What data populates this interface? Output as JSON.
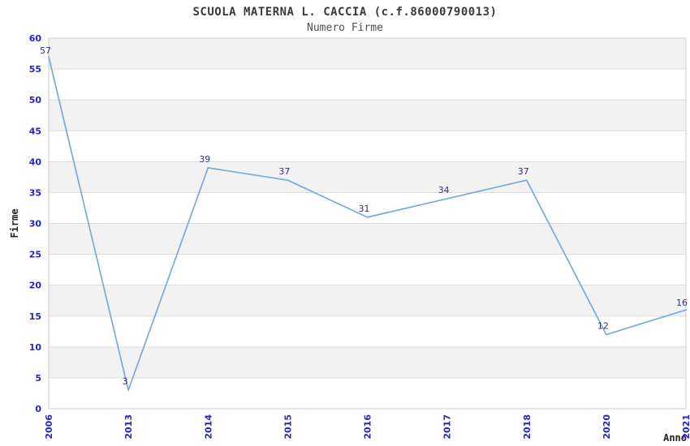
{
  "title": "SCUOLA MATERNA L. CACCIA (c.f.86000790013)",
  "subtitle": "Numero Firme",
  "chart_data": {
    "type": "line",
    "title": "SCUOLA MATERNA L. CACCIA (c.f.86000790013)",
    "subtitle": "Numero Firme",
    "xlabel": "Anno",
    "ylabel": "Firme",
    "categories": [
      "2006",
      "2013",
      "2014",
      "2015",
      "2016",
      "2017",
      "2018",
      "2020",
      "2021"
    ],
    "values": [
      57,
      3,
      39,
      37,
      31,
      34,
      37,
      12,
      16
    ],
    "ylim": [
      0,
      60
    ],
    "ytick_step": 5,
    "yticks": [
      0,
      5,
      10,
      15,
      20,
      25,
      30,
      35,
      40,
      45,
      50,
      55,
      60
    ],
    "grid": "horizontal-gridlines-with-alternating-bands",
    "legend": "none",
    "point_labels_visible": true
  },
  "colors": {
    "line": "#79a9dc",
    "tick_label": "#2323cb",
    "data_label": "#32328c",
    "band_gray": "#f2f2f2",
    "grid_line": "#dcdcdc",
    "plot_border": "#cccccc",
    "title_color": "#3a3a3a",
    "subtitle_color": "#4f4f4f",
    "axis_label_color": "#1f1f1f",
    "background": "#ffffff"
  }
}
